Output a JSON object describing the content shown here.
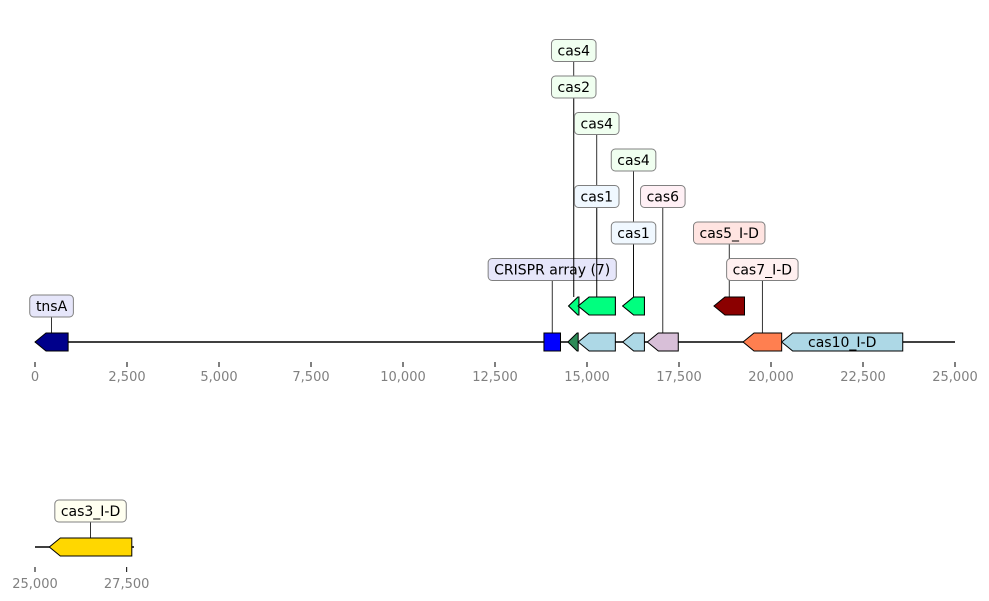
{
  "chart_data": {
    "type": "gene-map",
    "tracks": [
      {
        "range": [
          0,
          25000
        ],
        "ticks": [
          0,
          2500,
          5000,
          7500,
          10000,
          12500,
          15000,
          17500,
          20000,
          22500,
          25000
        ],
        "tick_labels": [
          "0",
          "2,500",
          "5,000",
          "7,500",
          "10,000",
          "12,500",
          "15,000",
          "17,500",
          "20,000",
          "22,500",
          "25,000"
        ],
        "features": [
          {
            "label": "tnsA",
            "start": 0,
            "end": 900,
            "strand": -1,
            "color": "#00008b",
            "inline": false,
            "level": 0,
            "label_bg": "#e6e6fa"
          },
          {
            "label": "CRISPR array (7)",
            "start": 13830,
            "end": 14280,
            "strand": 0,
            "color": "#0000ff",
            "inline": false,
            "level": 1,
            "label_bg": "#e6e6fa"
          },
          {
            "label": "",
            "start": 14480,
            "end": 14760,
            "strand": -1,
            "color": "#2e8b57",
            "inline": false,
            "level": 0
          },
          {
            "label": "cas4",
            "start": 14500,
            "end": 14780,
            "strand": -1,
            "color": "#00ff7f",
            "row": 1,
            "inline": false,
            "level": 7,
            "label_bg": "#f0fff0"
          },
          {
            "label": "cas2",
            "start": 14500,
            "end": 14780,
            "strand": -1,
            "color": "#00ff7f",
            "row": 1,
            "inline": false,
            "level": 6,
            "label_bg": "#f0fff0",
            "hidden": true
          },
          {
            "label": "",
            "start": 14760,
            "end": 15770,
            "strand": -1,
            "color": "#add8e6",
            "inline": false,
            "level": 0
          },
          {
            "label": "cas4",
            "start": 14760,
            "end": 15770,
            "strand": -1,
            "color": "#00ff7f",
            "row": 1,
            "inline": false,
            "level": 5,
            "label_bg": "#f0fff0"
          },
          {
            "label": "cas1",
            "start": 14760,
            "end": 15770,
            "strand": -1,
            "color": "#00ff7f",
            "row": 1,
            "inline": false,
            "level": 3,
            "label_bg": "#f0f8ff",
            "hidden": true
          },
          {
            "label": "",
            "start": 15970,
            "end": 16560,
            "strand": -1,
            "color": "#add8e6",
            "inline": false,
            "level": 0
          },
          {
            "label": "cas4",
            "start": 15970,
            "end": 16560,
            "strand": -1,
            "color": "#00ff7f",
            "row": 1,
            "inline": false,
            "level": 4,
            "label_bg": "#f0fff0"
          },
          {
            "label": "cas1",
            "start": 15970,
            "end": 16560,
            "strand": -1,
            "color": "#00ff7f",
            "row": 1,
            "inline": false,
            "level": 2,
            "label_bg": "#f0f8ff",
            "hidden": true
          },
          {
            "label": "cas6",
            "start": 16640,
            "end": 17480,
            "strand": -1,
            "color": "#d8bfd8",
            "inline": false,
            "level": 3,
            "label_bg": "#fff0f5"
          },
          {
            "label": "cas5_I-D",
            "start": 18450,
            "end": 19280,
            "strand": -1,
            "color": "#8b0000",
            "row": 1,
            "inline": false,
            "level": 2,
            "label_bg": "#ffe4e1"
          },
          {
            "label": "cas7_I-D",
            "start": 19240,
            "end": 20290,
            "strand": -1,
            "color": "#ff7f50",
            "inline": false,
            "level": 1,
            "label_bg": "#fff0f0"
          },
          {
            "label": "cas10_I-D",
            "start": 20290,
            "end": 23580,
            "strand": -1,
            "color": "#add8e6",
            "inline": true
          }
        ]
      },
      {
        "range": [
          25000,
          27700
        ],
        "ticks": [
          25000,
          27500
        ],
        "tick_labels": [
          "25,000",
          "27,500"
        ],
        "features": [
          {
            "label": "cas3_I-D",
            "start": 25390,
            "end": 27640,
            "strand": -1,
            "color": "#ffd700",
            "inline": false,
            "level": 0,
            "label_bg": "#fffff0"
          }
        ]
      }
    ]
  }
}
